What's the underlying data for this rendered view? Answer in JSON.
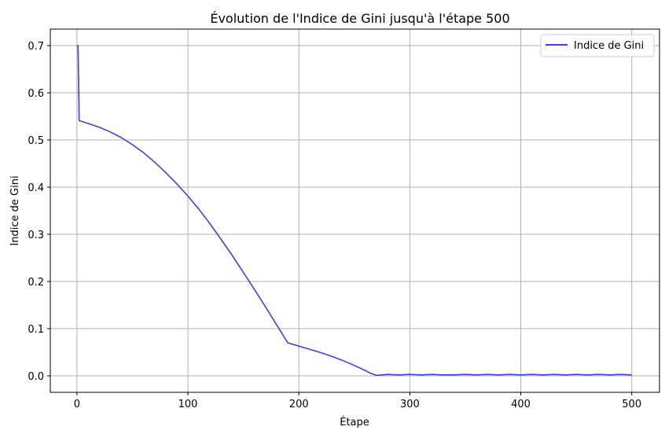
{
  "chart_data": {
    "type": "line",
    "title": "Évolution de l'Indice de Gini jusqu'à l'étape 500",
    "xlabel": "Étape",
    "ylabel": "Indice de Gini",
    "xlim": [
      -24,
      525
    ],
    "ylim": [
      -0.035,
      0.735
    ],
    "xticks": [
      0,
      100,
      200,
      300,
      400,
      500
    ],
    "yticks": [
      0.0,
      0.1,
      0.2,
      0.3,
      0.4,
      0.5,
      0.6,
      0.7
    ],
    "xtick_labels": [
      "0",
      "100",
      "200",
      "300",
      "400",
      "500"
    ],
    "ytick_labels": [
      "0.0",
      "0.1",
      "0.2",
      "0.3",
      "0.4",
      "0.5",
      "0.6",
      "0.7"
    ],
    "grid": true,
    "legend": "top-right",
    "series": [
      {
        "name": "Indice de Gini",
        "color": "#4040e0",
        "x": [
          0,
          1,
          2,
          10,
          20,
          30,
          40,
          50,
          60,
          70,
          80,
          90,
          100,
          110,
          120,
          130,
          140,
          150,
          160,
          170,
          180,
          190,
          200,
          210,
          220,
          230,
          240,
          250,
          260,
          265,
          270,
          275,
          280,
          290,
          300,
          310,
          320,
          330,
          340,
          350,
          360,
          370,
          380,
          390,
          400,
          410,
          420,
          430,
          440,
          450,
          460,
          470,
          480,
          490,
          500
        ],
        "y": [
          0.7,
          0.7,
          0.541,
          0.535,
          0.527,
          0.517,
          0.505,
          0.49,
          0.473,
          0.453,
          0.431,
          0.407,
          0.381,
          0.353,
          0.322,
          0.289,
          0.255,
          0.219,
          0.183,
          0.146,
          0.108,
          0.07,
          0.063,
          0.056,
          0.049,
          0.041,
          0.032,
          0.022,
          0.011,
          0.005,
          0.001,
          0.002,
          0.003,
          0.002,
          0.003,
          0.002,
          0.003,
          0.002,
          0.002,
          0.003,
          0.002,
          0.003,
          0.002,
          0.003,
          0.002,
          0.003,
          0.002,
          0.003,
          0.002,
          0.003,
          0.002,
          0.003,
          0.002,
          0.003,
          0.002
        ]
      }
    ]
  }
}
